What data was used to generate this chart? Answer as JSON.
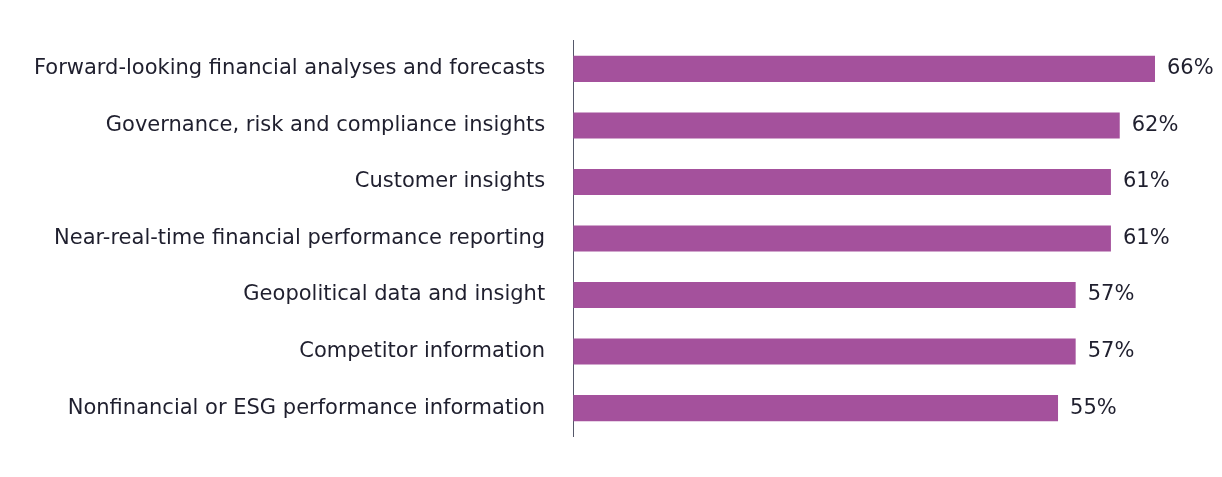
{
  "chart_data": {
    "type": "bar",
    "orientation": "horizontal",
    "categories": [
      "Forward-looking financial analyses and forecasts",
      "Governance, risk and compliance insights",
      "Customer insights",
      "Near-real-time financial performance reporting",
      "Geopolitical data and insight",
      "Competitor information",
      "Nonfinancial or ESG performance information"
    ],
    "values": [
      66,
      62,
      61,
      61,
      57,
      57,
      55
    ],
    "value_labels": [
      "66%",
      "62%",
      "61%",
      "61%",
      "57%",
      "57%",
      "55%"
    ],
    "color": "#a4519c"
  }
}
